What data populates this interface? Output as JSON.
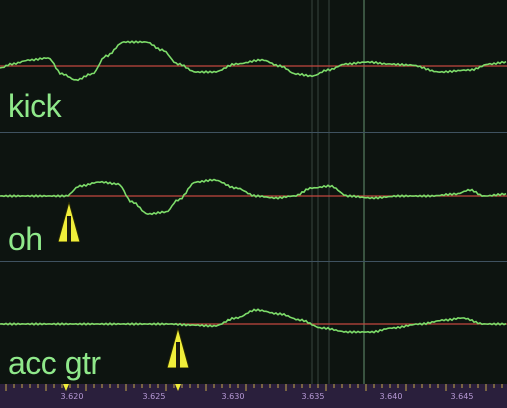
{
  "colors": {
    "background": "#0d1410",
    "waveform": "#7ddc6a",
    "zero_line": "#c2473f",
    "divider": "#3f5260",
    "label": "#8fe88a",
    "marker_fill": "#f0ee3a",
    "marker_outline": "#2a2a00",
    "ruler_bg": "#2a1f3c",
    "ruler_text": "#b79ad6",
    "ruler_tick": "#c7a84a",
    "cursor_line": "#6fa07a",
    "grid_line": "#3c4b44"
  },
  "tracks": [
    {
      "name": "kick",
      "marker": false
    },
    {
      "name": "oh",
      "marker": true,
      "marker_icon": "transient-marker-icon"
    },
    {
      "name": "acc gtr",
      "marker": true,
      "marker_icon": "transient-marker-icon"
    }
  ],
  "ruler": {
    "tick_labels": [
      "3.620",
      "3.625",
      "3.630",
      "3.635",
      "3.640",
      "3.645"
    ]
  }
}
